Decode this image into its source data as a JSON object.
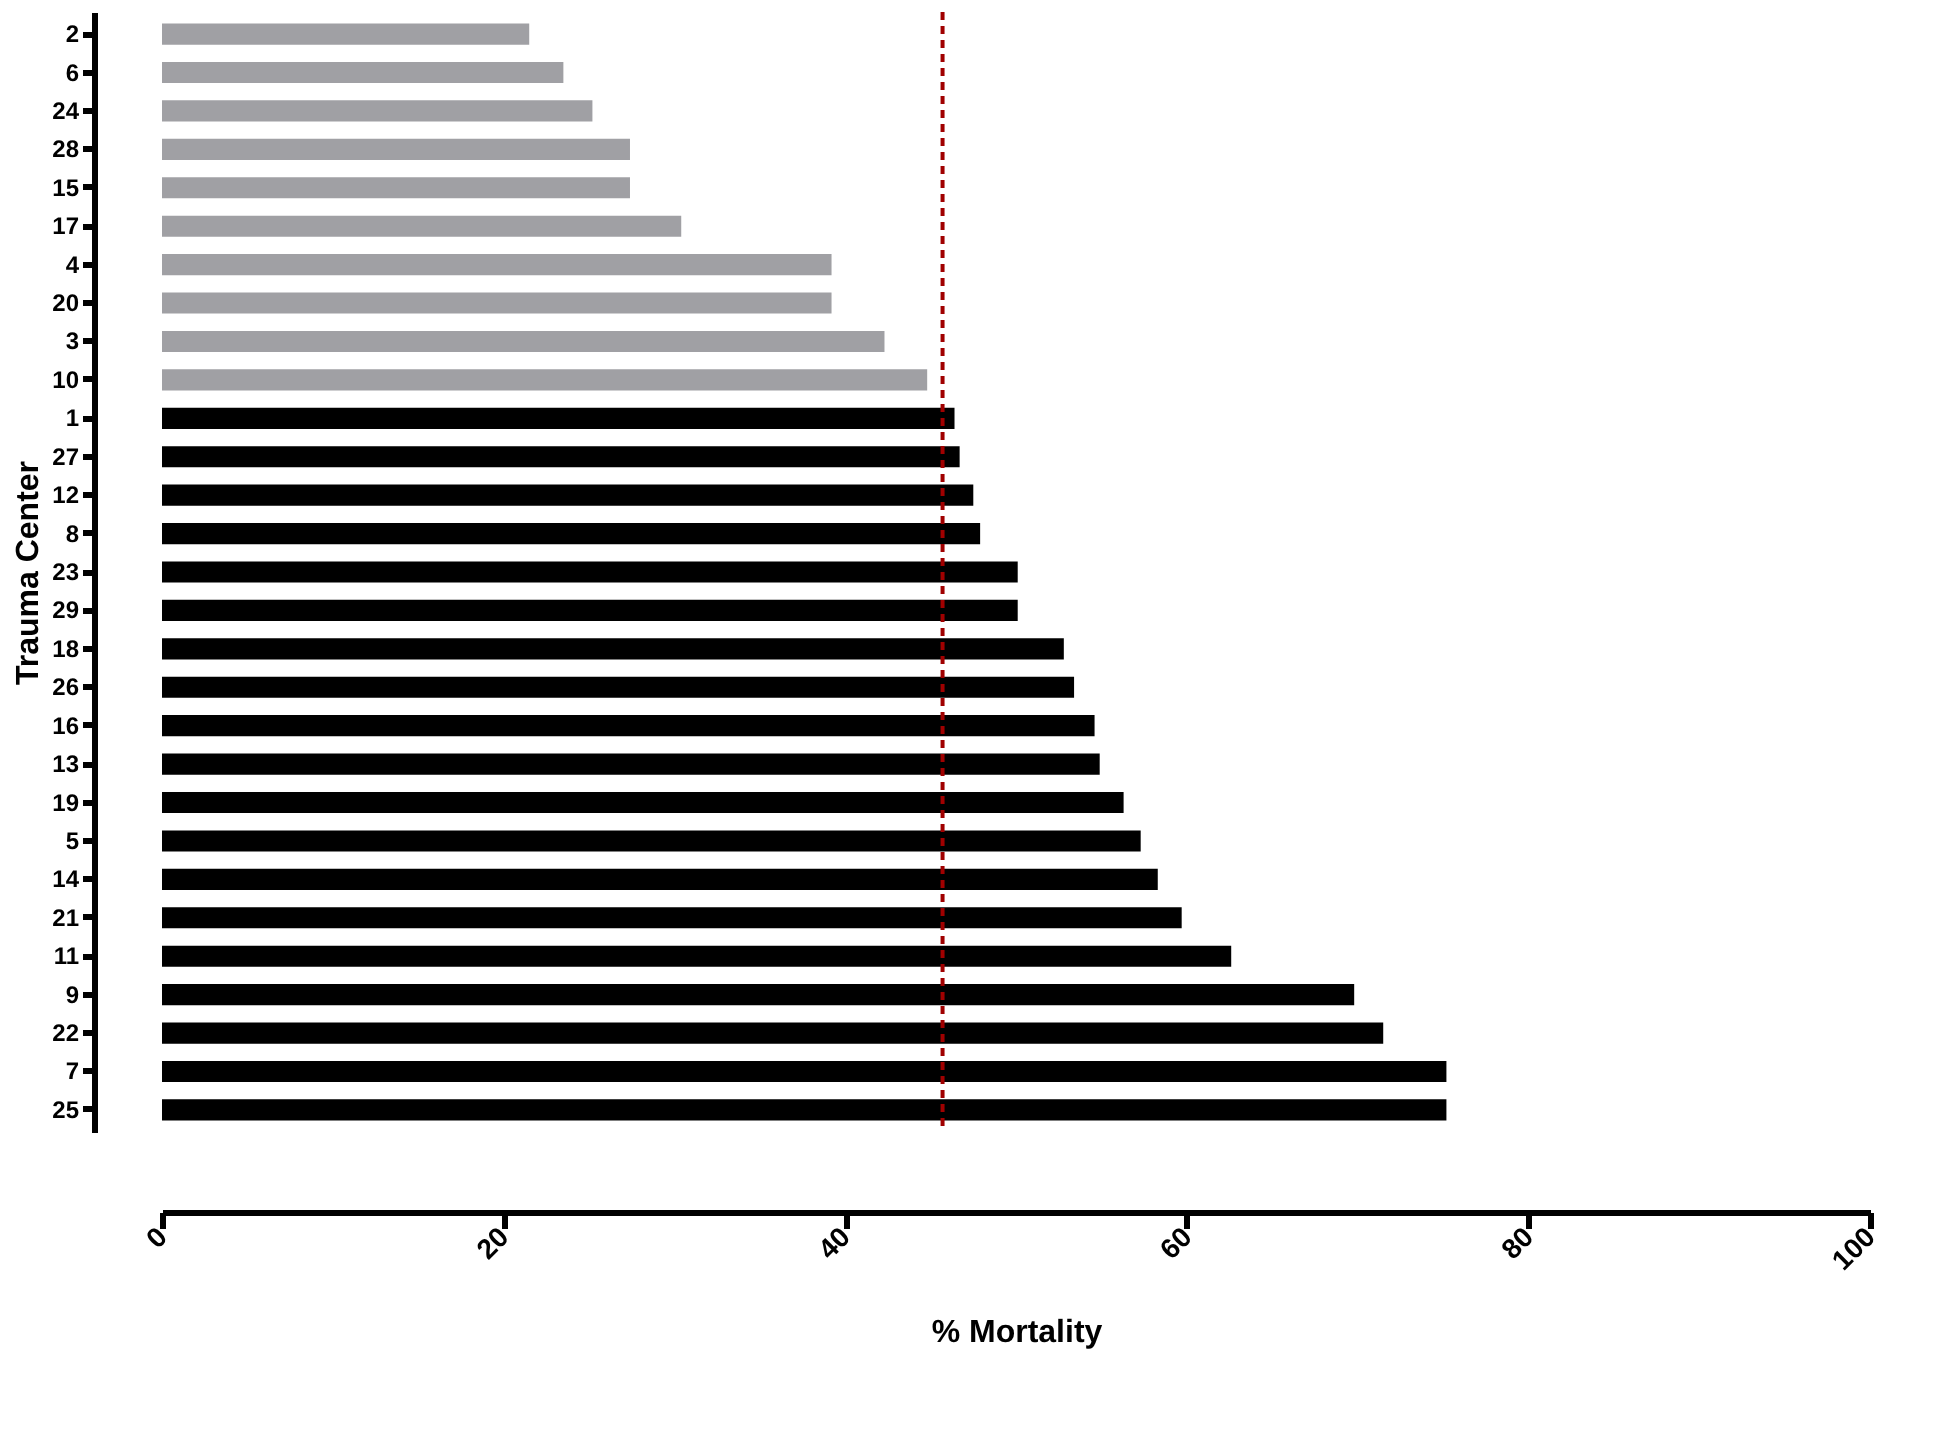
{
  "chart_data": {
    "type": "bar",
    "orientation": "horizontal",
    "xlabel": "% Mortality",
    "ylabel": "Trauma Center",
    "categories": [
      "2",
      "6",
      "24",
      "28",
      "15",
      "17",
      "4",
      "20",
      "3",
      "10",
      "1",
      "27",
      "12",
      "8",
      "23",
      "29",
      "18",
      "26",
      "16",
      "13",
      "19",
      "5",
      "14",
      "21",
      "11",
      "9",
      "22",
      "7",
      "25"
    ],
    "values": [
      21.5,
      23.5,
      25.2,
      27.4,
      27.4,
      30.4,
      39.2,
      39.2,
      42.3,
      44.8,
      46.4,
      46.7,
      47.5,
      47.9,
      50.1,
      50.1,
      52.8,
      53.4,
      54.6,
      54.9,
      56.3,
      57.3,
      58.3,
      59.7,
      62.6,
      69.8,
      71.5,
      75.2,
      75.2
    ],
    "colors": [
      "#a0a0a4",
      "#a0a0a4",
      "#a0a0a4",
      "#a0a0a4",
      "#a0a0a4",
      "#a0a0a4",
      "#a0a0a4",
      "#a0a0a4",
      "#a0a0a4",
      "#a0a0a4",
      "#000000",
      "#000000",
      "#000000",
      "#000000",
      "#000000",
      "#000000",
      "#000000",
      "#000000",
      "#000000",
      "#000000",
      "#000000",
      "#000000",
      "#000000",
      "#000000",
      "#000000",
      "#000000",
      "#000000",
      "#000000",
      "#000000"
    ],
    "xlim": [
      0,
      100
    ],
    "xticks": [
      0,
      20,
      40,
      60,
      80,
      100
    ],
    "ref_lines": [
      {
        "axis": "x",
        "value": 45.7,
        "color": "#a00000",
        "line_style": "dashed"
      }
    ],
    "grid": false
  }
}
